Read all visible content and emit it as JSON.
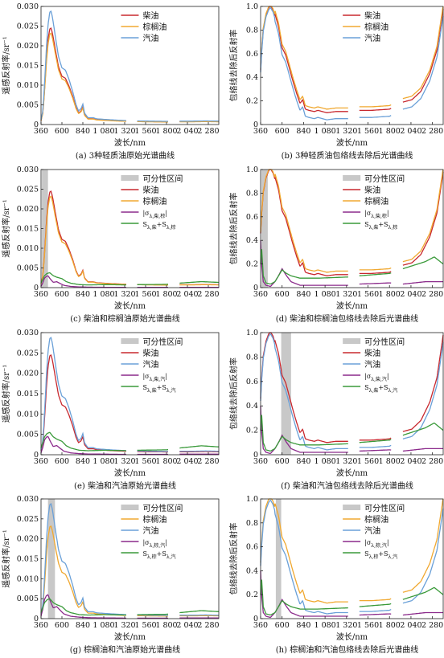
{
  "colors": {
    "diesel": "#c8282e",
    "tung_oil": "#f0a830",
    "gasoline": "#6aa0d8",
    "abs_diff": "#8b2a8b",
    "sum_sigma": "#3a9a3a",
    "separable_region": "#c8c8c8"
  },
  "legend_labels": {
    "separable": "可分性区间",
    "diesel": "柴油",
    "tung_oil": "棕榈油",
    "gasoline": "汽油"
  },
  "xlabel": "波长/nm",
  "ylabel_raw": "遥感反射率/sr⁻¹",
  "ylabel_cr": "包络线去除后反射率",
  "xtick_labels": [
    "360",
    "600",
    "840",
    "1 080",
    "1 320",
    "1 560",
    "1 800",
    "2 040",
    "2 280"
  ],
  "ytick_labels_raw": [
    "0",
    "0.005",
    "0.010",
    "0.015",
    "0.020",
    "0.025",
    "0.030"
  ],
  "ytick_labels_cr": [
    "0",
    "0.2",
    "0.4",
    "0.6",
    "0.8",
    "1.0"
  ],
  "chart_data": [
    {
      "id": "a",
      "type": "line",
      "caption": "(a) 3种轻质油原始光谱曲线",
      "xlabel": "波长/nm",
      "ylabel": "遥感反射率/sr⁻¹",
      "xlim": [
        360,
        2400
      ],
      "ylim": [
        0,
        0.03
      ],
      "legend_position": "top-right",
      "legend": [
        {
          "key": "diesel",
          "label": "柴油"
        },
        {
          "key": "tung_oil",
          "label": "棕榈油"
        },
        {
          "key": "gasoline",
          "label": "汽油"
        }
      ],
      "series": [
        {
          "name": "柴油",
          "key": "diesel",
          "kind": "raw",
          "peak": 0.0245
        },
        {
          "name": "棕榈油",
          "key": "tung_oil",
          "kind": "raw",
          "peak": 0.0232
        },
        {
          "name": "汽油",
          "key": "gasoline",
          "kind": "raw",
          "peak": 0.0288
        }
      ]
    },
    {
      "id": "b",
      "type": "line",
      "caption": "(b) 3种轻质油包络线去除后光谱曲线",
      "xlabel": "波长/nm",
      "ylabel": "包络线去除后反射率",
      "xlim": [
        360,
        2400
      ],
      "ylim": [
        0,
        1.0
      ],
      "legend_position": "top-right",
      "legend": [
        {
          "key": "diesel",
          "label": "柴油"
        },
        {
          "key": "tung_oil",
          "label": "棕榈油"
        },
        {
          "key": "gasoline",
          "label": "汽油"
        }
      ],
      "series": [
        {
          "name": "柴油",
          "key": "diesel",
          "kind": "cr",
          "shift": 0.03
        },
        {
          "name": "棕榈油",
          "key": "tung_oil",
          "kind": "cr",
          "shift": 0.06
        },
        {
          "name": "汽油",
          "key": "gasoline",
          "kind": "cr",
          "shift": -0.03
        }
      ]
    },
    {
      "id": "c",
      "type": "line",
      "caption": "(c) 柴油和棕榈油原始光谱曲线",
      "xlabel": "波长/nm",
      "ylabel": "遥感反射率/sr⁻¹",
      "xlim": [
        360,
        2400
      ],
      "ylim": [
        0,
        0.03
      ],
      "separable_ranges": [
        [
          370,
          440
        ]
      ],
      "legend_position": "top-right",
      "legend": [
        {
          "key": "separable",
          "label": "可分性区间"
        },
        {
          "key": "diesel",
          "label": "柴油"
        },
        {
          "key": "tung_oil",
          "label": "棕榈油"
        },
        {
          "key": "abs_diff",
          "label": "|σ",
          "sub": "λ,柴,棕",
          "close": "|"
        },
        {
          "key": "sum_sigma",
          "label": "S",
          "sub": "λ,柴",
          "plus": "+S",
          "sub2": "λ,棕"
        }
      ],
      "series": [
        {
          "name": "柴油",
          "key": "diesel",
          "kind": "raw",
          "peak": 0.0245
        },
        {
          "name": "棕榈油",
          "key": "tung_oil",
          "kind": "raw",
          "peak": 0.0232
        },
        {
          "key": "abs_diff",
          "kind": "rawdiff",
          "peak": 0.003
        },
        {
          "key": "sum_sigma",
          "kind": "rawsum",
          "peak": 0.0038
        }
      ]
    },
    {
      "id": "d",
      "type": "line",
      "caption": "(d) 柴油和棕榈油包络线去除后光谱曲线",
      "xlabel": "波长/nm",
      "ylabel": "包络线去除后反射率",
      "xlim": [
        360,
        2400
      ],
      "ylim": [
        0,
        1.0
      ],
      "separable_ranges": [
        [
          370,
          440
        ]
      ],
      "legend_position": "top-right",
      "legend": [
        {
          "key": "separable",
          "label": "可分性区间"
        },
        {
          "key": "diesel",
          "label": "柴油"
        },
        {
          "key": "tung_oil",
          "label": "棕榈油"
        },
        {
          "key": "abs_diff",
          "label": "|σ",
          "sub": "λ,柴,棕",
          "close": "|"
        },
        {
          "key": "sum_sigma",
          "label": "S",
          "sub": "λ,柴",
          "plus": "+S",
          "sub2": "λ,棕"
        }
      ],
      "series": [
        {
          "name": "柴油",
          "key": "diesel",
          "kind": "cr",
          "shift": 0.03
        },
        {
          "name": "棕榈油",
          "key": "tung_oil",
          "kind": "cr",
          "shift": 0.06
        },
        {
          "key": "abs_diff",
          "kind": "crdiff"
        },
        {
          "key": "sum_sigma",
          "kind": "crsum"
        }
      ]
    },
    {
      "id": "e",
      "type": "line",
      "caption": "(e) 柴油和汽油原始光谱曲线",
      "xlabel": "波长/nm",
      "ylabel": "遥感反射率/sr⁻¹",
      "xlim": [
        360,
        2400
      ],
      "ylim": [
        0,
        0.03
      ],
      "legend_position": "top-right",
      "legend": [
        {
          "key": "separable",
          "label": "可分性区间"
        },
        {
          "key": "diesel",
          "label": "柴油"
        },
        {
          "key": "gasoline",
          "label": "汽油"
        },
        {
          "key": "abs_diff",
          "label": "|σ",
          "sub": "λ,柴,汽",
          "close": "|"
        },
        {
          "key": "sum_sigma",
          "label": "S",
          "sub": "λ,柴",
          "plus": "+S",
          "sub2": "λ,汽"
        }
      ],
      "series": [
        {
          "name": "柴油",
          "key": "diesel",
          "kind": "raw",
          "peak": 0.0245
        },
        {
          "name": "汽油",
          "key": "gasoline",
          "kind": "raw",
          "peak": 0.0288
        },
        {
          "key": "abs_diff",
          "kind": "rawdiff",
          "peak": 0.0045
        },
        {
          "key": "sum_sigma",
          "kind": "rawsum",
          "peak": 0.0055
        }
      ]
    },
    {
      "id": "f",
      "type": "line",
      "caption": "(f) 柴油和汽油包络线去除后光谱曲线",
      "xlabel": "波长/nm",
      "ylabel": "包络线去除后反射率",
      "xlim": [
        360,
        2400
      ],
      "ylim": [
        0,
        1.0
      ],
      "separable_ranges": [
        [
          590,
          700
        ]
      ],
      "legend_position": "top-right",
      "legend": [
        {
          "key": "separable",
          "label": "可分性区间"
        },
        {
          "key": "diesel",
          "label": "柴油"
        },
        {
          "key": "gasoline",
          "label": "汽油"
        },
        {
          "key": "abs_diff",
          "label": "|σ",
          "sub": "λ,柴,汽",
          "close": "|"
        },
        {
          "key": "sum_sigma",
          "label": "S",
          "sub": "λ,柴",
          "plus": "+S",
          "sub2": "λ,汽"
        }
      ],
      "series": [
        {
          "name": "柴油",
          "key": "diesel",
          "kind": "cr",
          "shift": 0.03
        },
        {
          "name": "汽油",
          "key": "gasoline",
          "kind": "cr",
          "shift": -0.03
        },
        {
          "key": "abs_diff",
          "kind": "crdiff"
        },
        {
          "key": "sum_sigma",
          "kind": "crsum"
        }
      ]
    },
    {
      "id": "g",
      "type": "line",
      "caption": "(g) 棕榈油和汽油原始光谱曲线",
      "xlabel": "波长/nm",
      "ylabel": "遥感反射率/sr⁻¹",
      "xlim": [
        360,
        2400
      ],
      "ylim": [
        0,
        0.03
      ],
      "separable_ranges": [
        [
          440,
          520
        ]
      ],
      "legend_position": "top-right",
      "legend": [
        {
          "key": "separable",
          "label": "可分性区间"
        },
        {
          "key": "tung_oil",
          "label": "棕榈油"
        },
        {
          "key": "gasoline",
          "label": "汽油"
        },
        {
          "key": "abs_diff",
          "label": "|σ",
          "sub": "λ,棕,汽",
          "close": "|"
        },
        {
          "key": "sum_sigma",
          "label": "S",
          "sub": "λ,棕",
          "plus": "+S",
          "sub2": "λ,汽"
        }
      ],
      "series": [
        {
          "name": "棕榈油",
          "key": "tung_oil",
          "kind": "raw",
          "peak": 0.0232
        },
        {
          "name": "汽油",
          "key": "gasoline",
          "kind": "raw",
          "peak": 0.0288
        },
        {
          "key": "abs_diff",
          "kind": "rawdiff",
          "peak": 0.006
        },
        {
          "key": "sum_sigma",
          "kind": "rawsum",
          "peak": 0.005
        }
      ]
    },
    {
      "id": "h",
      "type": "line",
      "caption": "(h) 棕榈油和汽油包络线去除后光谱曲线",
      "xlabel": "波长/nm",
      "ylabel": "包络线去除后反射率",
      "xlim": [
        360,
        2400
      ],
      "ylim": [
        0,
        1.0
      ],
      "separable_ranges": [
        [
          530,
          590
        ]
      ],
      "legend_position": "top-right",
      "legend": [
        {
          "key": "separable",
          "label": "可分性区间"
        },
        {
          "key": "tung_oil",
          "label": "棕榈油"
        },
        {
          "key": "gasoline",
          "label": "汽油"
        },
        {
          "key": "abs_diff",
          "label": "|σ",
          "sub": "λ,棕,汽",
          "close": "|"
        },
        {
          "key": "sum_sigma",
          "label": "S",
          "sub": "λ,棕",
          "plus": "+S",
          "sub2": "λ,汽"
        }
      ],
      "series": [
        {
          "name": "棕榈油",
          "key": "tung_oil",
          "kind": "cr",
          "shift": 0.06
        },
        {
          "name": "汽油",
          "key": "gasoline",
          "kind": "cr",
          "shift": -0.03
        },
        {
          "key": "abs_diff",
          "kind": "crdiff"
        },
        {
          "key": "sum_sigma",
          "kind": "crsum"
        }
      ]
    }
  ]
}
